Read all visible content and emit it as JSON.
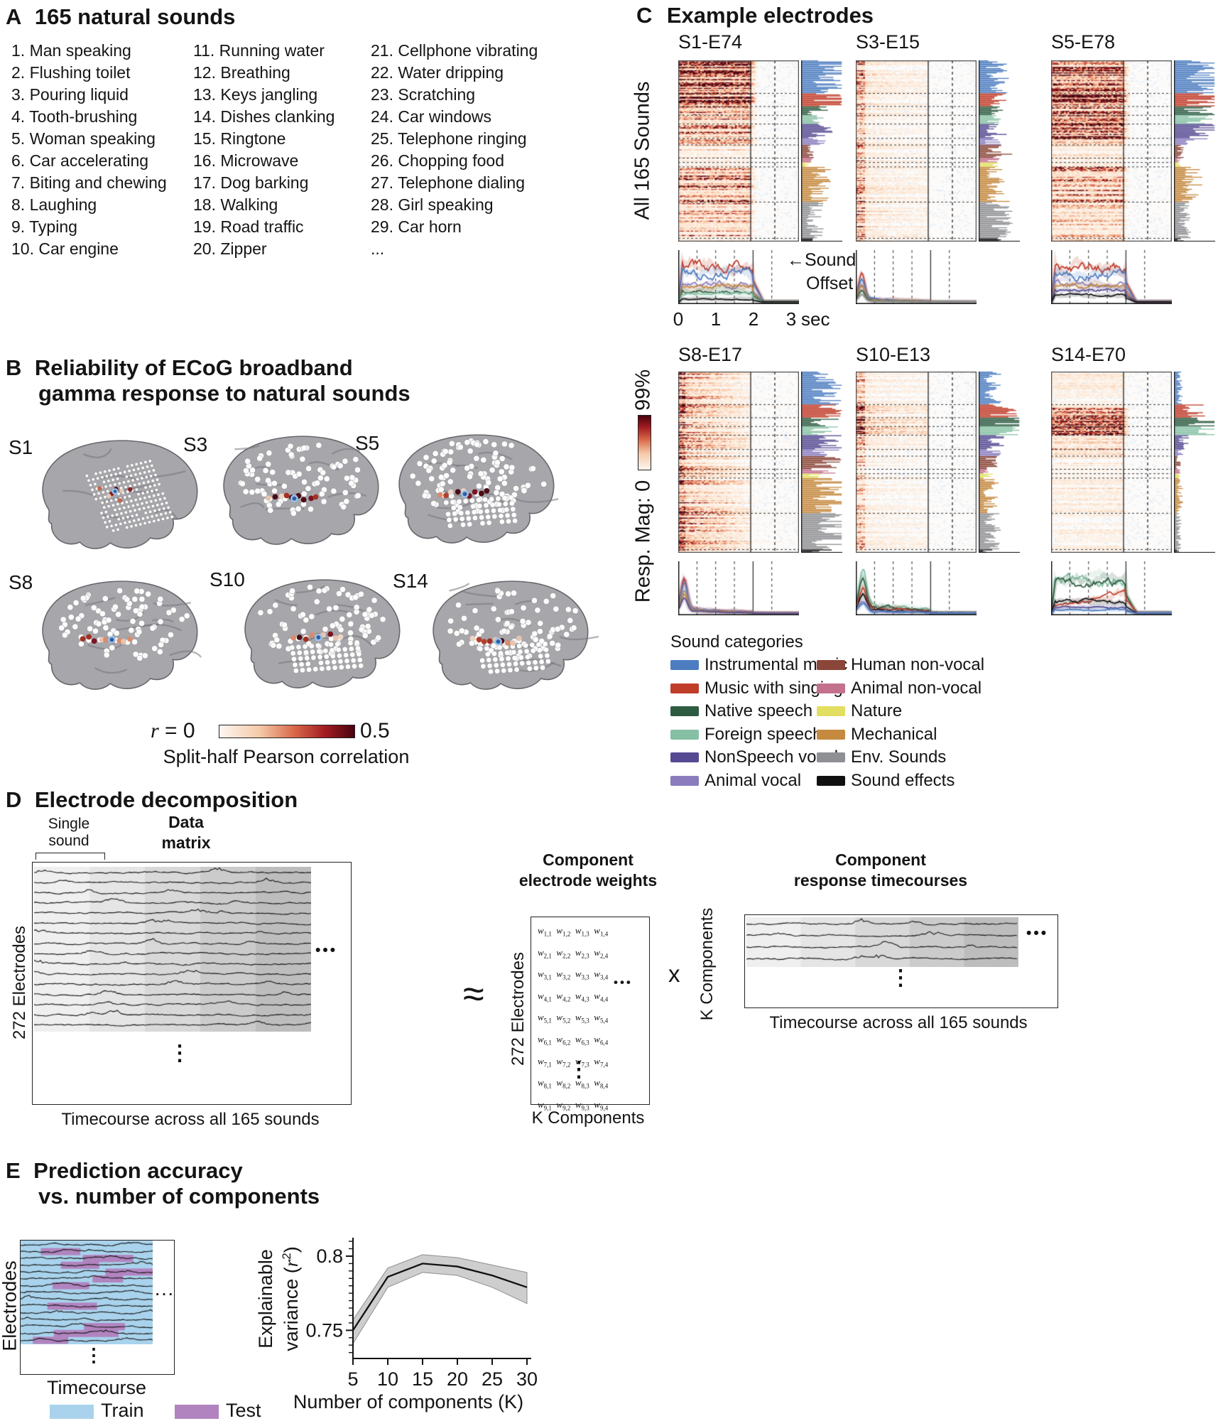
{
  "panelA": {
    "label": "A",
    "title": "165 natural sounds",
    "columns": [
      [
        "1. Man speaking",
        "2. Flushing toilet",
        "3. Pouring liquid",
        "4. Tooth-brushing",
        "5. Woman speaking",
        "6. Car accelerating",
        "7. Biting and chewing",
        "8. Laughing",
        "9. Typing",
        "10. Car engine"
      ],
      [
        "11. Running water",
        "12. Breathing",
        "13. Keys jangling",
        "14. Dishes clanking",
        "15. Ringtone",
        "16. Microwave",
        "17. Dog barking",
        "18. Walking",
        "19. Road traffic",
        "20. Zipper"
      ],
      [
        "21. Cellphone vibrating",
        "22. Water dripping",
        "23. Scratching",
        "24. Car windows",
        "25. Telephone ringing",
        "26. Chopping food",
        "27. Telephone dialing",
        "28. Girl speaking",
        "29. Car horn",
        "..."
      ]
    ]
  },
  "panelB": {
    "label": "B",
    "title_line1": "Reliability of ECoG broadband",
    "title_line2": "gamma response to natural sounds",
    "subjects_row1": [
      "S1",
      "S3",
      "S5"
    ],
    "subjects_row2": [
      "S8",
      "S10",
      "S14"
    ],
    "colorbar": {
      "var": "r",
      "equals": "=",
      "min": "0",
      "max": "0.5",
      "caption": "Split-half Pearson correlation"
    }
  },
  "panelC": {
    "label": "C",
    "title": "Example electrodes",
    "row1_electrodes": [
      "S1-E74",
      "S3-E15",
      "S5-E78"
    ],
    "row2_electrodes": [
      "S8-E17",
      "S10-E13",
      "S14-E70"
    ],
    "ylabel_row1": "All 165 Sounds",
    "ylabel_row2_prefix": "Resp. Mag: 0",
    "ylabel_row2_suffix": "99%",
    "time_ticks": [
      "0",
      "1",
      "2",
      "3"
    ],
    "time_unit": "sec",
    "offset_arrow": "←",
    "offset_line1": "Sound",
    "offset_line2": "Offset",
    "category_row_counts": [
      30,
      12,
      8,
      8,
      13,
      6,
      12,
      4,
      4,
      32,
      33,
      3
    ],
    "legend": {
      "title": "Sound categories",
      "items_left": [
        {
          "label": "Instrumental music",
          "color": "#4d7dc0"
        },
        {
          "label": "Music with singing",
          "color": "#c03d2a"
        },
        {
          "label": "Native speech",
          "color": "#2e5c42"
        },
        {
          "label": "Foreign speech",
          "color": "#86c0a4"
        },
        {
          "label": "NonSpeech vocal",
          "color": "#554a92"
        },
        {
          "label": "Animal vocal",
          "color": "#8a7cbd"
        }
      ],
      "items_right": [
        {
          "label": "Human non-vocal",
          "color": "#8a4638"
        },
        {
          "label": "Animal non-vocal",
          "color": "#c4718e"
        },
        {
          "label": "Nature",
          "color": "#e2de5f"
        },
        {
          "label": "Mechanical",
          "color": "#c5893f"
        },
        {
          "label": "Env. Sounds",
          "color": "#8f9093"
        },
        {
          "label": "Sound effects",
          "color": "#101010"
        }
      ]
    }
  },
  "panelD": {
    "label": "D",
    "title": "Electrode decomposition",
    "single_sound_line1": "Single",
    "single_sound_line2": "sound",
    "data_matrix_line1": "Data",
    "data_matrix_line2": "matrix",
    "electrodes_label": "272 Electrodes",
    "timecourse_label": "Timecourse across all 165 sounds",
    "approx_symbol": "≈",
    "weights_line1": "Component",
    "weights_line2": "electrode weights",
    "weights_electrodes_label": "272 Electrodes",
    "weights_bottom_label": "K Components",
    "weight_symbol": "w",
    "multiply_symbol": "x",
    "response_line1": "Component",
    "response_line2": "response timecourses",
    "response_side_label": "K Components",
    "response_bottom_label": "Timecourse across all 165 sounds",
    "dots_h": "•••",
    "dots_v": "⋮"
  },
  "panelE": {
    "label": "E",
    "title_line1": "Prediction accuracy",
    "title_line2": "vs. number of components",
    "electrodes_label": "Electrodes",
    "timecourse_label": "Timecourse",
    "train_label": "Train",
    "test_label": "Test",
    "train_color": "#a9d3ec",
    "test_color": "#b184bf",
    "ylabel_line1": "Explainable",
    "ylabel_pre2": "variance (",
    "ylabel_r": "r",
    "ylabel_sup": "2",
    "ylabel_close": ")",
    "xlabel": "Number of components (K)",
    "dots_h": "···",
    "dots_v": "⋮"
  },
  "chart_data": {
    "type": "line",
    "title": "Prediction accuracy vs. number of components",
    "xlabel": "Number of components (K)",
    "ylabel": "Explainable variance (r^2)",
    "x": [
      5,
      10,
      15,
      20,
      25,
      30
    ],
    "y": [
      0.75,
      0.786,
      0.795,
      0.793,
      0.787,
      0.779
    ],
    "band_upper": [
      0.757,
      0.792,
      0.801,
      0.799,
      0.794,
      0.789
    ],
    "band_lower": [
      0.741,
      0.779,
      0.789,
      0.787,
      0.779,
      0.768
    ],
    "yticks_major": [
      0.75,
      0.8
    ],
    "yticks_minor_step": 0.005,
    "xticks": [
      5,
      10,
      15,
      20,
      25,
      30
    ],
    "ylim": [
      0.731,
      0.811
    ],
    "xlim": [
      5,
      30
    ],
    "grid": false,
    "legend_position": "none",
    "band_color": "#cecece",
    "line_color": "#111111"
  }
}
